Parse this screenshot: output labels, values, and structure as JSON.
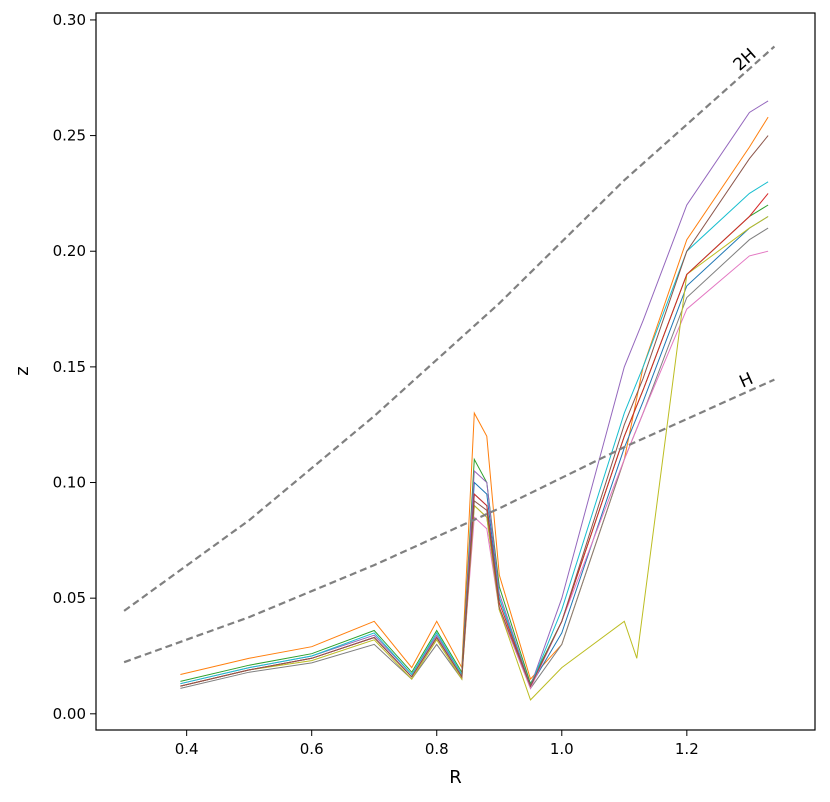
{
  "chart_data": {
    "type": "line",
    "title": "",
    "xlabel": "R",
    "ylabel": "z",
    "xlim": [
      0.255,
      1.405
    ],
    "ylim": [
      -0.007,
      0.303
    ],
    "xticks": [
      0.4,
      0.6,
      0.8,
      1.0,
      1.2
    ],
    "xtick_labels": [
      "0.4",
      "0.6",
      "0.8",
      "1.0",
      "1.2"
    ],
    "yticks": [
      0.0,
      0.05,
      0.1,
      0.15,
      0.2,
      0.25,
      0.3
    ],
    "ytick_labels": [
      "0.00",
      "0.05",
      "0.10",
      "0.15",
      "0.20",
      "0.25",
      "0.30"
    ],
    "grid": false,
    "legend": "none",
    "reference_lines": [
      {
        "label": "2H",
        "color": "#808080",
        "style": "dashed",
        "x": [
          0.3,
          0.5,
          0.7,
          0.9,
          1.1,
          1.34
        ],
        "y": [
          0.0445,
          0.0837,
          0.1287,
          0.1775,
          0.2307,
          0.2885
        ]
      },
      {
        "label": "H",
        "color": "#808080",
        "style": "dashed",
        "x": [
          0.3,
          0.5,
          0.7,
          0.9,
          1.1,
          1.34
        ],
        "y": [
          0.0223,
          0.0418,
          0.0643,
          0.0888,
          0.1153,
          0.1445
        ]
      }
    ],
    "colors": [
      "#1f77b4",
      "#ff7f0e",
      "#2ca02c",
      "#d62728",
      "#9467bd",
      "#8c564b",
      "#e377c2",
      "#7f7f7f",
      "#bcbd22",
      "#17becf"
    ],
    "series": [
      {
        "color": "#ff7f0e",
        "x": [
          0.39,
          0.5,
          0.6,
          0.7,
          0.76,
          0.8,
          0.84,
          0.86,
          0.88,
          0.9,
          0.95,
          1.0,
          1.1,
          1.13,
          1.2,
          1.3,
          1.33
        ],
        "y": [
          0.017,
          0.024,
          0.029,
          0.04,
          0.02,
          0.04,
          0.02,
          0.13,
          0.12,
          0.06,
          0.015,
          0.03,
          0.11,
          0.15,
          0.205,
          0.245,
          0.258
        ]
      },
      {
        "color": "#2ca02c",
        "x": [
          0.39,
          0.5,
          0.6,
          0.7,
          0.76,
          0.8,
          0.84,
          0.86,
          0.88,
          0.9,
          0.95,
          1.0,
          1.1,
          1.13,
          1.2,
          1.3,
          1.33
        ],
        "y": [
          0.014,
          0.021,
          0.026,
          0.036,
          0.018,
          0.036,
          0.018,
          0.11,
          0.1,
          0.055,
          0.013,
          0.04,
          0.12,
          0.14,
          0.19,
          0.215,
          0.22
        ]
      },
      {
        "color": "#1f77b4",
        "x": [
          0.39,
          0.5,
          0.6,
          0.7,
          0.76,
          0.8,
          0.84,
          0.86,
          0.88,
          0.9,
          0.95,
          1.0,
          1.1,
          1.13,
          1.2,
          1.3,
          1.33
        ],
        "y": [
          0.012,
          0.019,
          0.024,
          0.033,
          0.016,
          0.033,
          0.016,
          0.1,
          0.095,
          0.05,
          0.012,
          0.035,
          0.115,
          0.135,
          0.185,
          0.21,
          0.215
        ]
      },
      {
        "color": "#7f7f7f",
        "x": [
          0.39,
          0.5,
          0.6,
          0.7,
          0.76,
          0.8,
          0.84,
          0.86,
          0.88,
          0.9,
          0.95,
          1.0,
          1.1,
          1.13,
          1.2,
          1.3,
          1.33
        ],
        "y": [
          0.011,
          0.018,
          0.022,
          0.03,
          0.015,
          0.03,
          0.015,
          0.09,
          0.085,
          0.045,
          0.011,
          0.03,
          0.11,
          0.13,
          0.18,
          0.205,
          0.21
        ]
      },
      {
        "color": "#9467bd",
        "x": [
          0.39,
          0.5,
          0.6,
          0.7,
          0.76,
          0.8,
          0.84,
          0.86,
          0.88,
          0.9,
          0.95,
          1.0,
          1.1,
          1.13,
          1.2,
          1.3,
          1.33
        ],
        "y": [
          0.013,
          0.02,
          0.025,
          0.034,
          0.017,
          0.034,
          0.017,
          0.105,
          0.1,
          0.052,
          0.012,
          0.05,
          0.15,
          0.17,
          0.22,
          0.26,
          0.265
        ]
      },
      {
        "color": "#17becf",
        "x": [
          0.39,
          0.5,
          0.6,
          0.7,
          0.76,
          0.8,
          0.84,
          0.86,
          0.88,
          0.9,
          0.95,
          1.0,
          1.1,
          1.13,
          1.2,
          1.3,
          1.33
        ],
        "y": [
          0.013,
          0.02,
          0.025,
          0.035,
          0.017,
          0.035,
          0.017,
          0.095,
          0.09,
          0.05,
          0.012,
          0.045,
          0.13,
          0.15,
          0.2,
          0.225,
          0.23
        ]
      },
      {
        "color": "#e377c2",
        "x": [
          0.39,
          0.5,
          0.6,
          0.7,
          0.76,
          0.8,
          0.84,
          0.86,
          0.88,
          0.9,
          0.95,
          1.0,
          1.1,
          1.13,
          1.2,
          1.3,
          1.33
        ],
        "y": [
          0.012,
          0.019,
          0.024,
          0.033,
          0.016,
          0.033,
          0.016,
          0.085,
          0.08,
          0.045,
          0.011,
          0.04,
          0.11,
          0.13,
          0.175,
          0.198,
          0.2
        ]
      },
      {
        "color": "#bcbd22",
        "x": [
          0.39,
          0.5,
          0.6,
          0.7,
          0.76,
          0.8,
          0.84,
          0.86,
          0.88,
          0.9,
          0.95,
          1.0,
          1.1,
          1.12,
          1.2,
          1.3,
          1.33
        ],
        "y": [
          0.012,
          0.019,
          0.023,
          0.032,
          0.015,
          0.032,
          0.015,
          0.09,
          0.085,
          0.045,
          0.006,
          0.02,
          0.04,
          0.024,
          0.19,
          0.21,
          0.215
        ]
      },
      {
        "color": "#d62728",
        "x": [
          0.39,
          0.5,
          0.6,
          0.7,
          0.76,
          0.8,
          0.84,
          0.86,
          0.88,
          0.9,
          0.95,
          1.0,
          1.1,
          1.13,
          1.2,
          1.3,
          1.33
        ],
        "y": [
          0.012,
          0.019,
          0.024,
          0.033,
          0.016,
          0.033,
          0.016,
          0.095,
          0.09,
          0.048,
          0.012,
          0.04,
          0.12,
          0.14,
          0.19,
          0.215,
          0.225
        ]
      },
      {
        "color": "#8c564b",
        "x": [
          0.39,
          0.5,
          0.6,
          0.7,
          0.76,
          0.8,
          0.84,
          0.86,
          0.88,
          0.9,
          0.95,
          1.0,
          1.1,
          1.13,
          1.2,
          1.3,
          1.33
        ],
        "y": [
          0.012,
          0.019,
          0.024,
          0.033,
          0.016,
          0.033,
          0.016,
          0.092,
          0.088,
          0.046,
          0.012,
          0.04,
          0.125,
          0.145,
          0.2,
          0.24,
          0.25
        ]
      }
    ]
  }
}
